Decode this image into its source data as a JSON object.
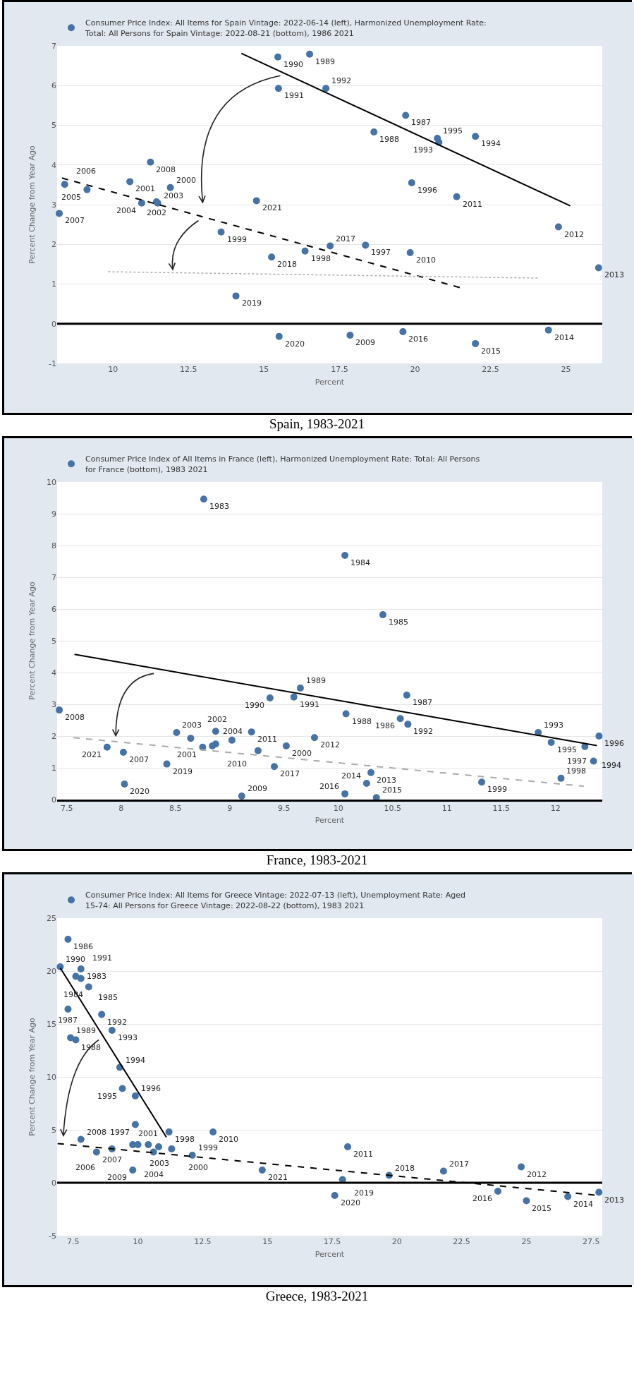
{
  "chart_data": [
    {
      "type": "scatter",
      "xlabel": "Percent",
      "ylabel": "Percent Change from Year Ago",
      "xlim": [
        8.15,
        26.2
      ],
      "xticks": [
        10,
        12.5,
        15,
        17.5,
        20,
        22.5,
        25
      ],
      "ylim": [
        -1,
        7
      ],
      "yticks": [
        -1,
        0,
        1,
        2,
        3,
        4,
        5,
        6,
        7
      ],
      "grid": "y",
      "legend": "top",
      "marker": "circle",
      "series": [
        {
          "name": "Consumer Price Index: All Items for Spain Vintage: 2022-06-14 (left), Harmonized Unemployment Rate: Total: All Persons for Spain Vintage: 2022-08-21 (bottom), 1986 2021",
          "color": "#4572a7",
          "x": [
            8.22,
            8.4,
            9.14,
            10.56,
            10.95,
            11.44,
            11.48,
            11.24,
            11.9,
            13.58,
            14.07,
            14.75,
            15.25,
            15.5,
            15.46,
            15.48,
            16.36,
            16.51,
            17.05,
            17.19,
            17.85,
            18.36,
            18.64,
            19.69,
            19.6,
            19.89,
            19.84,
            20.74,
            20.79,
            21.38,
            22.0,
            22.0,
            24.42,
            24.75,
            26.08
          ],
          "values": [
            2.78,
            3.51,
            3.38,
            3.58,
            3.04,
            3.07,
            3.04,
            4.07,
            3.43,
            2.31,
            0.7,
            3.1,
            1.68,
            -0.32,
            6.72,
            5.93,
            1.83,
            6.79,
            5.93,
            1.96,
            -0.29,
            1.98,
            4.83,
            5.25,
            -0.2,
            3.55,
            1.79,
            4.67,
            4.57,
            3.2,
            4.72,
            -0.5,
            -0.16,
            2.44,
            1.41
          ]
        },
        {
          "type": "line",
          "color": "#000000",
          "line_style": "solid",
          "marker": "none",
          "x": [
            14.25,
            25.14
          ],
          "values": [
            6.81,
            2.97
          ]
        },
        {
          "type": "line",
          "color": "#000000",
          "line_style": "dashed",
          "marker": "none",
          "x": [
            8.31,
            21.49
          ],
          "values": [
            3.67,
            0.91
          ]
        },
        {
          "type": "line",
          "color": "#aaaaaa",
          "line_style": "dotted",
          "marker": "none",
          "x": [
            9.84,
            24.11
          ],
          "values": [
            1.31,
            1.15
          ]
        }
      ],
      "ref_lines": [
        {
          "axis": "y",
          "value": 0,
          "color": "#000000"
        }
      ],
      "annotations": [
        {
          "text": "2007",
          "x": 8.22,
          "y": 2.78
        },
        {
          "text": "2006",
          "x": 8.4,
          "y": 3.51
        },
        {
          "text": "2005",
          "x": 9.14,
          "y": 3.38
        },
        {
          "text": "2001",
          "x": 10.56,
          "y": 3.58
        },
        {
          "text": "2004",
          "x": 10.95,
          "y": 3.04
        },
        {
          "text": "2002",
          "x": 11.44,
          "y": 3.07
        },
        {
          "text": "2003",
          "x": 11.48,
          "y": 3.04
        },
        {
          "text": "2008",
          "x": 11.24,
          "y": 4.07
        },
        {
          "text": "2000",
          "x": 11.9,
          "y": 3.43
        },
        {
          "text": "1999",
          "x": 13.58,
          "y": 2.31
        },
        {
          "text": "2019",
          "x": 14.07,
          "y": 0.7
        },
        {
          "text": "2021",
          "x": 14.75,
          "y": 3.1
        },
        {
          "text": "2018",
          "x": 15.25,
          "y": 1.68
        },
        {
          "text": "2020",
          "x": 15.5,
          "y": -0.32
        },
        {
          "text": "1990",
          "x": 15.46,
          "y": 6.72
        },
        {
          "text": "1991",
          "x": 15.48,
          "y": 5.93
        },
        {
          "text": "1998",
          "x": 16.36,
          "y": 1.83
        },
        {
          "text": "1989",
          "x": 16.51,
          "y": 6.79
        },
        {
          "text": "1992",
          "x": 17.05,
          "y": 5.93
        },
        {
          "text": "2017",
          "x": 17.19,
          "y": 1.96
        },
        {
          "text": "2009",
          "x": 17.85,
          "y": -0.29
        },
        {
          "text": "1997",
          "x": 18.36,
          "y": 1.98
        },
        {
          "text": "1988",
          "x": 18.64,
          "y": 4.83
        },
        {
          "text": "1987",
          "x": 19.69,
          "y": 5.25
        },
        {
          "text": "2016",
          "x": 19.6,
          "y": -0.2
        },
        {
          "text": "1996",
          "x": 19.89,
          "y": 3.55
        },
        {
          "text": "2010",
          "x": 19.84,
          "y": 1.79
        },
        {
          "text": "1995",
          "x": 20.74,
          "y": 4.67
        },
        {
          "text": "1993",
          "x": 20.79,
          "y": 4.57
        },
        {
          "text": "2011",
          "x": 21.38,
          "y": 3.2
        },
        {
          "text": "1994",
          "x": 22.0,
          "y": 4.72
        },
        {
          "text": "2015",
          "x": 22.0,
          "y": -0.5
        },
        {
          "text": "2014",
          "x": 24.42,
          "y": -0.16
        },
        {
          "text": "2012",
          "x": 24.75,
          "y": 2.44
        },
        {
          "text": "2013",
          "x": 26.08,
          "y": 1.41
        },
        "Spain, 1983-2021"
      ]
    },
    {
      "type": "scatter",
      "xlabel": "Percent",
      "ylabel": "Percent Change from Year Ago",
      "xlim": [
        7.41,
        12.43
      ],
      "xticks": [
        7.5,
        8,
        8.5,
        9,
        9.5,
        10,
        10.5,
        11,
        11.5,
        12
      ],
      "ylim": [
        0,
        10
      ],
      "yticks": [
        0,
        1,
        2,
        3,
        4,
        5,
        6,
        7,
        8,
        9,
        10
      ],
      "grid": "y",
      "legend": "top",
      "marker": "circle",
      "series": [
        {
          "name": "Consumer Price Index of All Items in France (left), Harmonized Unemployment Rate: Total: All Persons for France (bottom), 1983 2021",
          "color": "#4572a7",
          "x": [
            8.76,
            7.43,
            7.87,
            8.02,
            8.03,
            8.42,
            8.51,
            8.64,
            8.75,
            8.84,
            8.87,
            8.87,
            9.02,
            9.2,
            9.11,
            9.26,
            9.41,
            9.52,
            9.37,
            9.59,
            9.65,
            9.78,
            10.06,
            10.41,
            10.07,
            10.63,
            10.57,
            10.64,
            10.3,
            10.26,
            10.06,
            10.35,
            11.32,
            11.84,
            11.96,
            12.05,
            12.27,
            12.35,
            12.4
          ],
          "values": [
            9.46,
            2.82,
            1.65,
            1.49,
            0.49,
            1.12,
            2.11,
            1.93,
            1.65,
            1.69,
            1.75,
            2.15,
            1.87,
            2.13,
            0.11,
            1.54,
            1.04,
            1.69,
            3.2,
            3.23,
            3.51,
            1.95,
            7.69,
            5.82,
            2.7,
            3.29,
            2.55,
            2.37,
            0.85,
            0.51,
            0.18,
            0.06,
            0.55,
            2.11,
            1.8,
            0.67,
            1.67,
            1.21,
            2.0
          ]
        },
        {
          "type": "line",
          "color": "#000000",
          "line_style": "solid",
          "marker": "none",
          "x": [
            7.57,
            12.38
          ],
          "values": [
            4.57,
            1.7
          ]
        },
        {
          "type": "line",
          "color": "#aaaaaa",
          "line_style": "dashed",
          "marker": "none",
          "x": [
            7.56,
            12.26
          ],
          "values": [
            1.95,
            0.42
          ]
        }
      ],
      "annotations": [
        {
          "text": "1983",
          "x": 8.76,
          "y": 9.46
        },
        {
          "text": "2008",
          "x": 7.43,
          "y": 2.82
        },
        {
          "text": "2021",
          "x": 7.87,
          "y": 1.65
        },
        {
          "text": "2007",
          "x": 8.02,
          "y": 1.49
        },
        {
          "text": "2020",
          "x": 8.03,
          "y": 0.49
        },
        {
          "text": "2019",
          "x": 8.42,
          "y": 1.12
        },
        {
          "text": "2003",
          "x": 8.51,
          "y": 2.11
        },
        {
          "text": "2002",
          "x": 8.64,
          "y": 1.93
        },
        {
          "text": "2001",
          "x": 8.75,
          "y": 1.65
        },
        {
          "text": "2004",
          "x": 8.87,
          "y": 2.15
        },
        {
          "text": "2011",
          "x": 9.2,
          "y": 2.13
        },
        {
          "text": "2009",
          "x": 9.11,
          "y": 0.11
        },
        {
          "text": "2010",
          "x": 9.26,
          "y": 1.54
        },
        {
          "text": "2017",
          "x": 9.41,
          "y": 1.04
        },
        {
          "text": "2000",
          "x": 9.52,
          "y": 1.69
        },
        {
          "text": "1990",
          "x": 9.37,
          "y": 3.2
        },
        {
          "text": "1991",
          "x": 9.59,
          "y": 3.23
        },
        {
          "text": "1989",
          "x": 9.65,
          "y": 3.51
        },
        {
          "text": "2012",
          "x": 9.78,
          "y": 1.95
        },
        {
          "text": "1984",
          "x": 10.06,
          "y": 7.69
        },
        {
          "text": "1985",
          "x": 10.41,
          "y": 5.82
        },
        {
          "text": "1988",
          "x": 10.07,
          "y": 2.7
        },
        {
          "text": "1987",
          "x": 10.63,
          "y": 3.29
        },
        {
          "text": "1986",
          "x": 10.57,
          "y": 2.55
        },
        {
          "text": "1992",
          "x": 10.64,
          "y": 2.37
        },
        {
          "text": "2013",
          "x": 10.3,
          "y": 0.85
        },
        {
          "text": "2014",
          "x": 10.26,
          "y": 0.51
        },
        {
          "text": "2016",
          "x": 10.06,
          "y": 0.18
        },
        {
          "text": "2015",
          "x": 10.35,
          "y": 0.06
        },
        {
          "text": "1999",
          "x": 11.32,
          "y": 0.55
        },
        {
          "text": "1993",
          "x": 11.84,
          "y": 2.11
        },
        {
          "text": "1995",
          "x": 11.96,
          "y": 1.8
        },
        {
          "text": "1998",
          "x": 12.05,
          "y": 0.67
        },
        {
          "text": "1994",
          "x": 12.27,
          "y": 1.67
        },
        {
          "text": "1997",
          "x": 12.35,
          "y": 1.21
        },
        {
          "text": "1996",
          "x": 12.4,
          "y": 2.0
        },
        "France, 1983-2021"
      ]
    },
    {
      "type": "scatter",
      "xlabel": "Percent",
      "ylabel": "Percent Change from Year Ago",
      "xlim": [
        6.88,
        27.93
      ],
      "xticks": [
        7.5,
        10,
        12.5,
        15,
        17.5,
        20,
        22.5,
        25,
        27.5
      ],
      "ylim": [
        -5,
        25
      ],
      "yticks": [
        -5,
        0,
        5,
        10,
        15,
        20,
        25
      ],
      "grid": "y",
      "legend": "top",
      "marker": "circle",
      "series": [
        {
          "name": "Consumer Price Index: All Items for Greece Vintage: 2022-07-13 (left), Unemployment Rate: Aged 15-74: All Persons for Greece Vintage: 2022-08-22 (bottom), 1983 2021",
          "color": "#4572a7",
          "x": [
            7.3,
            7.0,
            7.8,
            7.6,
            7.8,
            8.1,
            7.3,
            8.6,
            9.0,
            7.4,
            7.6,
            9.3,
            9.4,
            9.9,
            9.9,
            11.2,
            12.9,
            7.8,
            8.4,
            9.0,
            9.8,
            10.0,
            10.4,
            10.6,
            10.8,
            11.3,
            9.8,
            12.1,
            14.8,
            18.1,
            17.9,
            17.6,
            19.7,
            21.8,
            24.8,
            23.9,
            25.0,
            26.6,
            27.8
          ],
          "values": [
            23.0,
            20.4,
            20.2,
            19.5,
            19.3,
            18.5,
            16.4,
            15.9,
            14.4,
            13.7,
            13.5,
            10.9,
            8.9,
            8.2,
            5.5,
            4.8,
            4.8,
            4.1,
            2.9,
            3.2,
            3.6,
            3.6,
            3.6,
            2.9,
            3.4,
            3.2,
            1.2,
            2.6,
            1.2,
            3.4,
            0.3,
            -1.2,
            0.7,
            1.1,
            1.5,
            -0.8,
            -1.7,
            -1.3,
            -0.9
          ]
        },
        {
          "type": "line",
          "color": "#000000",
          "line_style": "solid",
          "marker": "none",
          "x": [
            7.0,
            11.1
          ],
          "values": [
            20.3,
            4.3
          ]
        },
        {
          "type": "line",
          "color": "#000000",
          "line_style": "dashed",
          "marker": "none",
          "x": [
            6.9,
            27.8
          ],
          "values": [
            3.7,
            -1.2
          ]
        }
      ],
      "ref_lines": [
        {
          "axis": "y",
          "value": 0,
          "color": "#000000"
        }
      ],
      "annotations": [
        {
          "text": "1986",
          "x": 7.3,
          "y": 23.0
        },
        {
          "text": "1990",
          "x": 7.0,
          "y": 20.4
        },
        {
          "text": "1983",
          "x": 7.8,
          "y": 20.2
        },
        {
          "text": "1991",
          "x": 7.6,
          "y": 19.5
        },
        {
          "text": "1985",
          "x": 7.8,
          "y": 19.3
        },
        {
          "text": "1984",
          "x": 8.1,
          "y": 18.5
        },
        {
          "text": "1987",
          "x": 7.3,
          "y": 16.4
        },
        {
          "text": "1992",
          "x": 8.6,
          "y": 15.9
        },
        {
          "text": "1993",
          "x": 9.0,
          "y": 14.4
        },
        {
          "text": "1989",
          "x": 7.4,
          "y": 13.7
        },
        {
          "text": "1988",
          "x": 7.6,
          "y": 13.5
        },
        {
          "text": "1994",
          "x": 9.3,
          "y": 10.9
        },
        {
          "text": "1995",
          "x": 9.4,
          "y": 8.9
        },
        {
          "text": "1996",
          "x": 9.9,
          "y": 8.2
        },
        {
          "text": "1997",
          "x": 9.9,
          "y": 5.5
        },
        {
          "text": "1998",
          "x": 11.2,
          "y": 4.8
        },
        {
          "text": "2010",
          "x": 12.9,
          "y": 4.8
        },
        {
          "text": "2008",
          "x": 7.8,
          "y": 4.1
        },
        {
          "text": "2007",
          "x": 8.4,
          "y": 2.9
        },
        {
          "text": "2006",
          "x": 9.0,
          "y": 3.2
        },
        {
          "text": "2003",
          "x": 9.8,
          "y": 3.6
        },
        {
          "text": "2001",
          "x": 10.4,
          "y": 3.6
        },
        {
          "text": "2004",
          "x": 10.6,
          "y": 2.9
        },
        {
          "text": "2000",
          "x": 11.3,
          "y": 3.2
        },
        {
          "text": "2009",
          "x": 9.8,
          "y": 1.2
        },
        {
          "text": "1999",
          "x": 12.1,
          "y": 2.6
        },
        {
          "text": "2021",
          "x": 14.8,
          "y": 1.2
        },
        {
          "text": "2011",
          "x": 18.1,
          "y": 3.4
        },
        {
          "text": "2019",
          "x": 17.9,
          "y": 0.3
        },
        {
          "text": "2020",
          "x": 17.6,
          "y": -1.2
        },
        {
          "text": "2018",
          "x": 19.7,
          "y": 0.7
        },
        {
          "text": "2017",
          "x": 21.8,
          "y": 1.1
        },
        {
          "text": "2012",
          "x": 24.8,
          "y": 1.5
        },
        {
          "text": "2016",
          "x": 23.9,
          "y": -0.8
        },
        {
          "text": "2015",
          "x": 25.0,
          "y": -1.7
        },
        {
          "text": "2014",
          "x": 26.6,
          "y": -1.3
        },
        {
          "text": "2013",
          "x": 27.8,
          "y": -0.9
        },
        "Greece, 1983-2021"
      ]
    }
  ]
}
